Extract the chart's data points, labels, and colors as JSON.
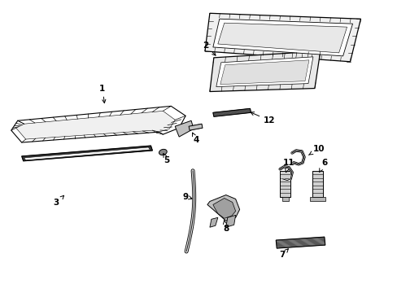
{
  "bg_color": "#ffffff",
  "line_color": "#000000",
  "parts_labels": {
    "1": [
      125,
      108,
      125,
      118
    ],
    "2": [
      253,
      62,
      270,
      72
    ],
    "3": [
      72,
      248,
      80,
      238
    ],
    "4": [
      241,
      172,
      232,
      170
    ],
    "5": [
      202,
      196,
      194,
      191
    ],
    "6": [
      400,
      202,
      392,
      212
    ],
    "7": [
      348,
      316,
      356,
      310
    ],
    "8": [
      282,
      280,
      275,
      272
    ],
    "9": [
      228,
      240,
      238,
      243
    ],
    "10": [
      393,
      185,
      383,
      192
    ],
    "11": [
      358,
      202,
      355,
      213
    ],
    "12": [
      330,
      150,
      318,
      152
    ]
  }
}
